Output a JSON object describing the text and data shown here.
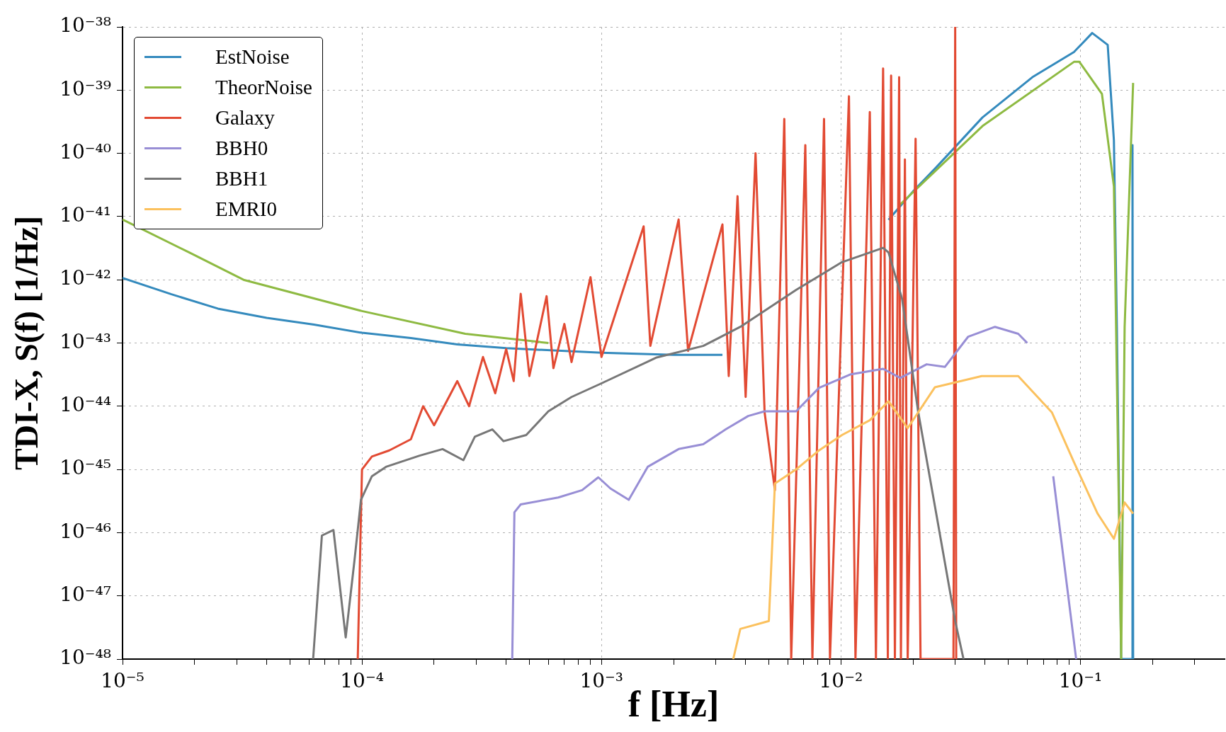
{
  "chart_data": {
    "type": "line",
    "xlabel": "f [Hz]",
    "ylabel": "TDI-X, S(f) [1/Hz]",
    "log": "xy",
    "grid": true,
    "legend": "top left",
    "marker": "none",
    "xlim": [
      1e-05,
      0.4
    ],
    "ylim": [
      1e-48,
      1e-38
    ],
    "xticks": [
      {
        "value": 1e-05,
        "label": "10⁻⁵"
      },
      {
        "value": 2e-05,
        "label": null
      },
      {
        "value": 3e-05,
        "label": null
      },
      {
        "value": 4e-05,
        "label": null
      },
      {
        "value": 5e-05,
        "label": null
      },
      {
        "value": 6e-05,
        "label": null
      },
      {
        "value": 7e-05,
        "label": null
      },
      {
        "value": 8e-05,
        "label": null
      },
      {
        "value": 9e-05,
        "label": null
      },
      {
        "value": 0.0001,
        "label": "10⁻⁴"
      },
      {
        "value": 0.0002,
        "label": null
      },
      {
        "value": 0.0003,
        "label": null
      },
      {
        "value": 0.0004,
        "label": null
      },
      {
        "value": 0.0005,
        "label": null
      },
      {
        "value": 0.0006,
        "label": null
      },
      {
        "value": 0.0007,
        "label": null
      },
      {
        "value": 0.0008,
        "label": null
      },
      {
        "value": 0.0009,
        "label": null
      },
      {
        "value": 0.001,
        "label": "10⁻³"
      },
      {
        "value": 0.002,
        "label": null
      },
      {
        "value": 0.003,
        "label": null
      },
      {
        "value": 0.004,
        "label": null
      },
      {
        "value": 0.005,
        "label": null
      },
      {
        "value": 0.006,
        "label": null
      },
      {
        "value": 0.007,
        "label": null
      },
      {
        "value": 0.008,
        "label": null
      },
      {
        "value": 0.009,
        "label": null
      },
      {
        "value": 0.01,
        "label": "10⁻²"
      },
      {
        "value": 0.02,
        "label": null
      },
      {
        "value": 0.03,
        "label": null
      },
      {
        "value": 0.04,
        "label": null
      },
      {
        "value": 0.05,
        "label": null
      },
      {
        "value": 0.06,
        "label": null
      },
      {
        "value": 0.07,
        "label": null
      },
      {
        "value": 0.08,
        "label": null
      },
      {
        "value": 0.09,
        "label": null
      },
      {
        "value": 0.1,
        "label": "10⁻¹"
      },
      {
        "value": 0.2,
        "label": null
      },
      {
        "value": 0.3,
        "label": null
      }
    ],
    "yticks": [
      {
        "value": 1e-48,
        "label": "10⁻⁴⁸"
      },
      {
        "value": 1e-47,
        "label": "10⁻⁴⁷"
      },
      {
        "value": 1e-46,
        "label": "10⁻⁴⁶"
      },
      {
        "value": 1e-45,
        "label": "10⁻⁴⁵"
      },
      {
        "value": 1e-44,
        "label": "10⁻⁴⁴"
      },
      {
        "value": 1e-43,
        "label": "10⁻⁴³"
      },
      {
        "value": 1e-42,
        "label": "10⁻⁴²"
      },
      {
        "value": 1e-41,
        "label": "10⁻⁴¹"
      },
      {
        "value": 1e-40,
        "label": "10⁻⁴⁰"
      },
      {
        "value": 1e-39,
        "label": "10⁻³⁹"
      },
      {
        "value": 1e-38,
        "label": "10⁻³⁸"
      }
    ],
    "series": [
      {
        "name": "EstNoise",
        "color": "#348abd",
        "x": [
          1e-05,
          1.6e-05,
          2.5e-05,
          4e-05,
          6.3e-05,
          0.0001,
          0.00016,
          0.00025,
          0.0004,
          0.001,
          0.002,
          0.0032,
          0.004,
          0.0158,
          0.02,
          0.025,
          0.039,
          0.063,
          0.094,
          0.112,
          0.13,
          0.138,
          0.142,
          0.148,
          0.164,
          0.165,
          0.166
        ],
        "values": [
          1.07e-42,
          5.9e-43,
          3.5e-43,
          2.5e-43,
          1.95e-43,
          1.45e-43,
          1.2e-43,
          9.5e-44,
          8.3e-44,
          7e-44,
          6.5e-44,
          6.5e-44,
          null,
          8.9e-42,
          2.5e-41,
          6e-41,
          3.7e-40,
          1.6e-39,
          4e-39,
          8e-39,
          5.2e-39,
          1.6e-40,
          1.8e-43,
          1e-48,
          1e-48,
          1.35e-40,
          1e-48
        ]
      },
      {
        "name": "TheorNoise",
        "color": "#8eba42",
        "x": [
          1e-05,
          1.9e-05,
          3.2e-05,
          0.0001,
          0.00027,
          0.0006,
          0.002,
          0.0175,
          0.039,
          0.094,
          0.099,
          0.123,
          0.138,
          0.148,
          0.153,
          0.166
        ],
        "values": [
          9e-42,
          2.7e-42,
          1e-42,
          3.2e-43,
          1.4e-43,
          1e-43,
          null,
          1.5e-41,
          2.7e-40,
          2.8e-39,
          2.8e-39,
          8.7e-40,
          3e-41,
          1e-48,
          1.8e-43,
          1.3e-39
        ]
      },
      {
        "name": "Galaxy",
        "color": "#e24a33",
        "x": [
          9.6e-05,
          0.0001,
          0.00011,
          0.00013,
          0.00016,
          0.00018,
          0.0002,
          0.00025,
          0.00028,
          0.00032,
          0.00036,
          0.0004,
          0.00043,
          0.00046,
          0.0005,
          0.00059,
          0.00063,
          0.0007,
          0.00075,
          0.0009,
          0.001,
          0.0015,
          0.0016,
          0.0021,
          0.0023,
          0.0032,
          0.0034,
          0.0037,
          0.004,
          0.0044,
          0.0048,
          0.0053,
          0.0058,
          0.0062,
          0.0071,
          0.0076,
          0.0085,
          0.009,
          0.0108,
          0.0115,
          0.0132,
          0.014,
          0.015,
          0.0157,
          0.0162,
          0.0168,
          0.0175,
          0.0178,
          0.0185,
          0.019,
          0.0205,
          0.0215,
          0.0295,
          0.03,
          0.0303
        ],
        "values": [
          1e-48,
          1e-45,
          1.6e-45,
          2e-45,
          3e-45,
          1e-44,
          5e-45,
          2.5e-44,
          1e-44,
          6e-44,
          1.6e-44,
          8e-44,
          2.5e-44,
          6e-43,
          3e-44,
          5.5e-43,
          4e-44,
          2e-43,
          5e-44,
          1.1e-42,
          6e-44,
          7e-42,
          9e-44,
          9e-42,
          7.5e-44,
          7.5e-42,
          3e-44,
          2.1e-41,
          1.4e-44,
          1e-40,
          8e-45,
          4.7e-46,
          3.5e-40,
          1e-48,
          1.35e-40,
          1e-48,
          3.5e-40,
          1e-48,
          8e-40,
          1e-48,
          4.5e-40,
          1e-48,
          2.2e-39,
          1e-48,
          1.7e-39,
          1e-48,
          1.6e-39,
          1e-48,
          8e-41,
          1e-48,
          1.7e-40,
          1e-48,
          1e-48,
          1e-38,
          1e-48
        ]
      },
      {
        "name": "BBH0",
        "color": "#988ed5",
        "x": [
          0.000424,
          0.000433,
          0.00046,
          0.00066,
          0.00083,
          0.00097,
          0.00109,
          0.0013,
          0.00156,
          0.0021,
          0.00266,
          0.0033,
          0.0041,
          0.0048,
          0.0065,
          0.0081,
          0.011,
          0.015,
          0.0177,
          0.0228,
          0.0272,
          0.034,
          0.044,
          0.055,
          0.06,
          0.07,
          0.077,
          0.096
        ],
        "values": [
          1e-48,
          2.1e-46,
          2.8e-46,
          3.6e-46,
          4.7e-46,
          7.5e-46,
          5e-46,
          3.3e-46,
          1.1e-45,
          2.1e-45,
          2.5e-45,
          4.3e-45,
          7e-45,
          8.3e-45,
          8.3e-45,
          1.95e-44,
          3.2e-44,
          3.9e-44,
          2.8e-44,
          4.6e-44,
          4.2e-44,
          1.26e-43,
          1.8e-43,
          1.4e-43,
          1e-43,
          null,
          7.8e-46,
          1e-48
        ]
      },
      {
        "name": "BBH1",
        "color": "#777777",
        "x": [
          6.25e-05,
          6.8e-05,
          7.6e-05,
          8.55e-05,
          9.3e-05,
          9.9e-05,
          0.00011,
          0.000126,
          0.000174,
          0.000217,
          0.000265,
          0.000296,
          0.00035,
          0.00039,
          0.000485,
          0.0006,
          0.00075,
          0.001,
          0.0017,
          0.00266,
          0.0038,
          0.0065,
          0.0101,
          0.015,
          0.0158,
          0.018,
          0.021,
          0.025,
          0.03,
          0.0325
        ],
        "values": [
          1e-48,
          9e-47,
          1.1e-46,
          2.2e-48,
          3.6e-47,
          3.3e-46,
          7.8e-46,
          1.1e-45,
          1.65e-45,
          2.1e-45,
          1.4e-45,
          3.3e-45,
          4.3e-45,
          2.8e-45,
          3.5e-45,
          8.3e-45,
          1.4e-44,
          2.3e-44,
          5.9e-44,
          9e-44,
          1.8e-43,
          6.9e-43,
          1.9e-42,
          3.2e-42,
          2.7e-42,
          5e-43,
          8.3e-45,
          2e-46,
          4e-48,
          1e-48
        ]
      },
      {
        "name": "EMRI0",
        "color": "#fbc15e",
        "x": [
          0.00355,
          0.0038,
          0.005,
          0.0053,
          0.0065,
          0.0081,
          0.0101,
          0.0132,
          0.0158,
          0.019,
          0.0247,
          0.0387,
          0.055,
          0.076,
          0.094,
          0.118,
          0.138,
          0.153,
          0.166
        ],
        "values": [
          1e-48,
          3e-48,
          4e-48,
          6e-46,
          1e-45,
          2e-45,
          3.5e-45,
          6e-45,
          1.2e-44,
          4.5e-45,
          2e-44,
          3e-44,
          3e-44,
          8e-45,
          1.3e-45,
          2e-46,
          8e-47,
          3e-46,
          2e-46
        ]
      }
    ]
  }
}
